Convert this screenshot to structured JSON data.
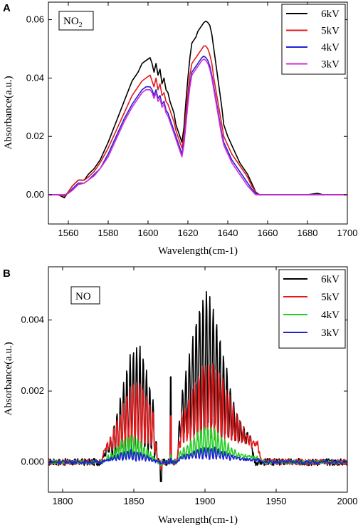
{
  "chart_data": [
    {
      "type": "line",
      "panel_label": "A",
      "annotation": "NO",
      "annotation_sub": "2",
      "xlabel": "Wavelength(cm-1)",
      "ylabel": "Absorbance(a.u.)",
      "xlim": [
        1550,
        1700
      ],
      "ylim": [
        -0.01,
        0.066
      ],
      "xticks": [
        1560,
        1580,
        1600,
        1620,
        1640,
        1660,
        1680,
        1700
      ],
      "yticks": [
        0.0,
        0.02,
        0.04,
        0.06
      ],
      "ytick_labels": [
        "0.00",
        "0.02",
        "0.04",
        "0.06"
      ],
      "legend_position": "top-right",
      "grid": false,
      "series": [
        {
          "name": "6kV",
          "color": "#000000",
          "x": [
            1550,
            1555,
            1558,
            1560,
            1562,
            1565,
            1568,
            1570,
            1573,
            1576,
            1580,
            1584,
            1588,
            1592,
            1595,
            1597,
            1599,
            1601,
            1602,
            1603,
            1604,
            1605,
            1606,
            1607,
            1608,
            1609,
            1610,
            1611,
            1612,
            1613,
            1614,
            1615,
            1616,
            1617,
            1618,
            1619,
            1620,
            1621,
            1622,
            1623,
            1624,
            1625,
            1626,
            1627,
            1628,
            1629,
            1630,
            1631,
            1632,
            1633,
            1634,
            1635,
            1636,
            1637,
            1638,
            1640,
            1642,
            1644,
            1646,
            1648,
            1650,
            1652,
            1654,
            1656,
            1660,
            1665,
            1670,
            1675,
            1680,
            1685,
            1688,
            1690,
            1695,
            1700
          ],
          "y": [
            0.0,
            0.0,
            -0.001,
            0.001,
            0.003,
            0.005,
            0.005,
            0.007,
            0.009,
            0.012,
            0.018,
            0.025,
            0.032,
            0.039,
            0.042,
            0.045,
            0.046,
            0.047,
            0.045,
            0.042,
            0.045,
            0.041,
            0.043,
            0.038,
            0.04,
            0.036,
            0.035,
            0.032,
            0.03,
            0.028,
            0.024,
            0.022,
            0.02,
            0.018,
            0.023,
            0.032,
            0.04,
            0.047,
            0.052,
            0.053,
            0.054,
            0.056,
            0.057,
            0.058,
            0.059,
            0.0595,
            0.059,
            0.058,
            0.055,
            0.05,
            0.045,
            0.04,
            0.035,
            0.03,
            0.024,
            0.02,
            0.017,
            0.014,
            0.011,
            0.009,
            0.007,
            0.004,
            0.001,
            0.0,
            0.0,
            0.0,
            0.0,
            0.0,
            0.0,
            0.0005,
            0.0,
            0.0,
            0.0,
            0.0
          ]
        },
        {
          "name": "5kV",
          "color": "#e41a1c",
          "x": [
            1550,
            1555,
            1558,
            1560,
            1562,
            1565,
            1568,
            1570,
            1573,
            1576,
            1580,
            1584,
            1588,
            1592,
            1595,
            1597,
            1599,
            1601,
            1602,
            1603,
            1604,
            1605,
            1606,
            1607,
            1608,
            1609,
            1610,
            1611,
            1612,
            1613,
            1614,
            1615,
            1616,
            1617,
            1618,
            1619,
            1620,
            1621,
            1622,
            1623,
            1624,
            1625,
            1626,
            1627,
            1628,
            1629,
            1630,
            1631,
            1632,
            1633,
            1634,
            1635,
            1636,
            1637,
            1638,
            1640,
            1642,
            1644,
            1646,
            1648,
            1650,
            1652,
            1654,
            1656,
            1660,
            1665,
            1670,
            1675,
            1680,
            1685,
            1690,
            1695,
            1700
          ],
          "y": [
            0.0,
            0.0,
            -0.0005,
            0.001,
            0.003,
            0.005,
            0.005,
            0.006,
            0.008,
            0.011,
            0.016,
            0.022,
            0.028,
            0.034,
            0.037,
            0.039,
            0.04,
            0.041,
            0.039,
            0.037,
            0.04,
            0.036,
            0.038,
            0.034,
            0.035,
            0.032,
            0.031,
            0.029,
            0.027,
            0.025,
            0.022,
            0.02,
            0.018,
            0.016,
            0.02,
            0.028,
            0.035,
            0.041,
            0.045,
            0.046,
            0.047,
            0.048,
            0.049,
            0.05,
            0.051,
            0.051,
            0.05,
            0.048,
            0.045,
            0.04,
            0.036,
            0.032,
            0.028,
            0.024,
            0.02,
            0.017,
            0.014,
            0.012,
            0.01,
            0.008,
            0.006,
            0.003,
            0.001,
            0.0,
            0.0,
            0.0,
            0.0,
            0.0,
            0.0,
            0.0,
            0.0,
            0.0,
            0.0
          ]
        },
        {
          "name": "4kV",
          "color": "#1f23d6",
          "x": [
            1550,
            1555,
            1558,
            1560,
            1562,
            1565,
            1568,
            1570,
            1573,
            1576,
            1580,
            1584,
            1588,
            1592,
            1595,
            1597,
            1599,
            1601,
            1602,
            1603,
            1604,
            1605,
            1606,
            1607,
            1608,
            1609,
            1610,
            1611,
            1612,
            1613,
            1614,
            1615,
            1616,
            1617,
            1618,
            1619,
            1620,
            1621,
            1622,
            1623,
            1624,
            1625,
            1626,
            1627,
            1628,
            1629,
            1630,
            1631,
            1632,
            1633,
            1634,
            1635,
            1636,
            1637,
            1638,
            1640,
            1642,
            1644,
            1646,
            1648,
            1650,
            1652,
            1654,
            1656,
            1660,
            1665,
            1670,
            1675,
            1680,
            1685,
            1690,
            1695,
            1700
          ],
          "y": [
            0.0,
            0.0,
            0.0,
            0.0005,
            0.002,
            0.004,
            0.004,
            0.005,
            0.007,
            0.009,
            0.014,
            0.02,
            0.026,
            0.031,
            0.034,
            0.036,
            0.037,
            0.037,
            0.036,
            0.034,
            0.036,
            0.033,
            0.034,
            0.031,
            0.032,
            0.029,
            0.028,
            0.026,
            0.024,
            0.022,
            0.02,
            0.018,
            0.016,
            0.014,
            0.018,
            0.025,
            0.032,
            0.038,
            0.042,
            0.043,
            0.044,
            0.045,
            0.046,
            0.047,
            0.0475,
            0.047,
            0.046,
            0.044,
            0.041,
            0.037,
            0.033,
            0.029,
            0.025,
            0.021,
            0.018,
            0.015,
            0.012,
            0.01,
            0.008,
            0.006,
            0.004,
            0.002,
            0.0005,
            0.0,
            0.0,
            0.0,
            0.0,
            0.0,
            0.0,
            0.0,
            0.0,
            0.0,
            0.0
          ]
        },
        {
          "name": "3kV",
          "color": "#d62ad6",
          "x": [
            1550,
            1555,
            1558,
            1560,
            1562,
            1565,
            1568,
            1570,
            1573,
            1576,
            1580,
            1584,
            1588,
            1592,
            1595,
            1597,
            1599,
            1601,
            1602,
            1603,
            1604,
            1605,
            1606,
            1607,
            1608,
            1609,
            1610,
            1611,
            1612,
            1613,
            1614,
            1615,
            1616,
            1617,
            1618,
            1619,
            1620,
            1621,
            1622,
            1623,
            1624,
            1625,
            1626,
            1627,
            1628,
            1629,
            1630,
            1631,
            1632,
            1633,
            1634,
            1635,
            1636,
            1637,
            1638,
            1640,
            1642,
            1644,
            1646,
            1648,
            1650,
            1652,
            1654,
            1656,
            1660,
            1665,
            1670,
            1675,
            1680,
            1685,
            1690,
            1695,
            1700
          ],
          "y": [
            0.0,
            0.0,
            0.0,
            0.0005,
            0.0015,
            0.0035,
            0.004,
            0.005,
            0.0065,
            0.009,
            0.013,
            0.019,
            0.025,
            0.03,
            0.033,
            0.035,
            0.036,
            0.036,
            0.035,
            0.033,
            0.035,
            0.032,
            0.033,
            0.03,
            0.031,
            0.028,
            0.027,
            0.025,
            0.023,
            0.021,
            0.019,
            0.017,
            0.015,
            0.013,
            0.017,
            0.024,
            0.031,
            0.037,
            0.041,
            0.042,
            0.043,
            0.044,
            0.045,
            0.046,
            0.0465,
            0.046,
            0.045,
            0.043,
            0.04,
            0.036,
            0.032,
            0.028,
            0.024,
            0.02,
            0.017,
            0.014,
            0.011,
            0.009,
            0.007,
            0.005,
            0.003,
            0.0015,
            0.0,
            0.0,
            0.0,
            0.0,
            0.0,
            0.0,
            0.0,
            0.0,
            0.0,
            0.0,
            0.0
          ]
        }
      ]
    },
    {
      "type": "line",
      "panel_label": "B",
      "annotation": "NO",
      "xlabel": "Wavelength(cm-1)",
      "ylabel": "Absorbance(a.u.)",
      "xlim": [
        1790,
        2000
      ],
      "ylim": [
        -0.00085,
        0.0055
      ],
      "xticks": [
        1800,
        1850,
        1900,
        1950,
        2000
      ],
      "yticks": [
        0.0,
        0.002,
        0.004
      ],
      "ytick_labels": [
        "0.000",
        "0.002",
        "0.004"
      ],
      "legend_position": "top-right",
      "grid": false,
      "series": [
        {
          "name": "6kV",
          "color": "#000000",
          "bands": [
            {
              "x0": 1827,
              "x1": 1867,
              "center": 1852,
              "peak": 0.0031,
              "width": 14,
              "base": 0.0003,
              "period": 2.3
            },
            {
              "x0": 1880,
              "x1": 1935,
              "center": 1901,
              "peak": 0.0041,
              "width": 17,
              "base": 0.0009,
              "period": 2.4
            }
          ],
          "noise": 0.0001,
          "dip": {
            "x": 1869,
            "y": -0.00055
          },
          "spike": {
            "x": 1876,
            "y": 0.0024
          }
        },
        {
          "name": "5kV",
          "color": "#e41a1c",
          "bands": [
            {
              "x0": 1827,
              "x1": 1867,
              "center": 1852,
              "peak": 0.0019,
              "width": 15,
              "base": 0.0005,
              "period": 2.3
            },
            {
              "x0": 1880,
              "x1": 1940,
              "center": 1903,
              "peak": 0.0023,
              "width": 20,
              "base": 0.0007,
              "period": 2.4
            }
          ],
          "noise": 8e-05,
          "dip": {
            "x": 1869,
            "y": -0.0002
          },
          "spike": {
            "x": 1876,
            "y": 0.0013
          }
        },
        {
          "name": "4kV",
          "color": "#22cc22",
          "bands": [
            {
              "x0": 1828,
              "x1": 1867,
              "center": 1848,
              "peak": 0.0007,
              "width": 12,
              "base": 0.0001,
              "period": 2.3
            },
            {
              "x0": 1880,
              "x1": 1940,
              "center": 1902,
              "peak": 0.00085,
              "width": 16,
              "base": 0.0002,
              "period": 2.4
            }
          ],
          "noise": 5e-05,
          "dip": {
            "x": 1869,
            "y": -0.0001
          },
          "spike": {
            "x": 1876,
            "y": 0.0002
          }
        },
        {
          "name": "3kV",
          "color": "#1f23d6",
          "bands": [
            {
              "x0": 1828,
              "x1": 1867,
              "center": 1848,
              "peak": 0.0003,
              "width": 12,
              "base": 5e-05,
              "period": 2.3
            },
            {
              "x0": 1880,
              "x1": 1940,
              "center": 1902,
              "peak": 0.00035,
              "width": 16,
              "base": 0.0001,
              "period": 2.4
            }
          ],
          "noise": 4e-05,
          "dip": {
            "x": 1869,
            "y": -5e-05
          },
          "spike": {
            "x": 1876,
            "y": 0.0001
          }
        }
      ]
    }
  ]
}
